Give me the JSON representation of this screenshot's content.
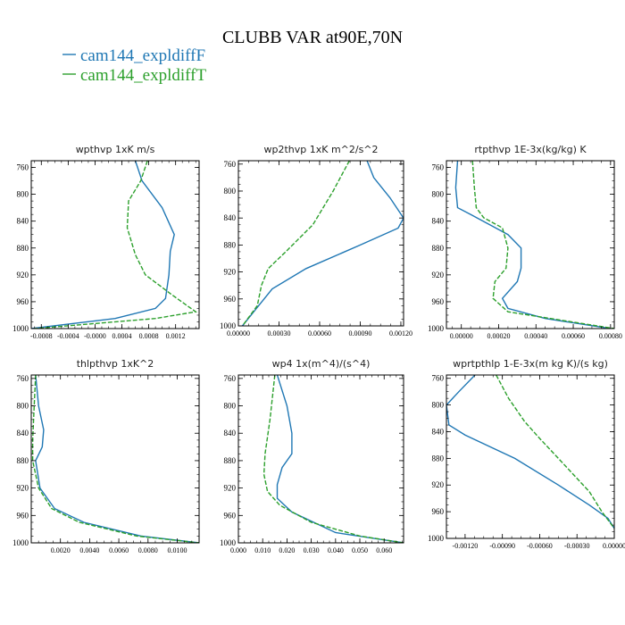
{
  "figure": {
    "title": "CLUBB VAR at90E,70N",
    "legend": [
      {
        "label": "cam144_expldiffF",
        "color": "#1f77b4"
      },
      {
        "label": "cam144_expldiffT",
        "color": "#2ca02c"
      }
    ]
  },
  "chart_data": [
    {
      "type": "line",
      "title": "wpthvp   1xK m/s",
      "xlim": [
        -0.00095,
        0.00155
      ],
      "ylim": [
        1000,
        750
      ],
      "xticks": [
        -0.0008,
        -0.0004,
        0.0,
        0.0004,
        0.0008,
        0.0012
      ],
      "xtick_labels": [
        "-0.0008",
        "-0.0004",
        "-0.0000",
        "0.0004",
        "0.0008",
        "0.0012"
      ],
      "yticks": [
        760,
        800,
        840,
        880,
        920,
        960,
        1000
      ],
      "ytick_labels": [
        "760",
        "800",
        "840",
        "880",
        "920",
        "960",
        "1000"
      ],
      "series": [
        {
          "name": "cam144_expldiffF",
          "color": "#1f77b4",
          "x": [
            0.0006,
            0.0007,
            0.001,
            0.00118,
            0.00112,
            0.0011,
            0.00105,
            0.0009,
            0.0003,
            -0.00095
          ],
          "y": [
            750,
            780,
            820,
            860,
            885,
            920,
            955,
            970,
            985,
            1000
          ]
        },
        {
          "name": "cam144_expldiffT",
          "color": "#2ca02c",
          "dash": true,
          "x": [
            0.00078,
            0.00068,
            0.0005,
            0.00048,
            0.0006,
            0.00075,
            0.00115,
            0.0015,
            0.0009,
            -0.0009
          ],
          "y": [
            750,
            780,
            810,
            850,
            890,
            920,
            950,
            975,
            985,
            1000
          ]
        }
      ]
    },
    {
      "type": "line",
      "title": "wp2thvp   1xK m^2/s^2",
      "xlim": [
        0,
        0.00122
      ],
      "ylim": [
        1000,
        755
      ],
      "xticks": [
        0,
        0.0003,
        0.0006,
        0.0009,
        0.0012
      ],
      "xtick_labels": [
        "0.00000",
        "0.00030",
        "0.00060",
        "0.00090",
        "0.00120"
      ],
      "yticks": [
        760,
        800,
        840,
        880,
        920,
        960,
        1000
      ],
      "ytick_labels": [
        "760",
        "800",
        "840",
        "880",
        "920",
        "960",
        "1000"
      ],
      "series": [
        {
          "name": "cam144_expldiffF",
          "color": "#1f77b4",
          "x": [
            0.00095,
            0.001,
            0.00112,
            0.00122,
            0.00118,
            0.0009,
            0.0005,
            0.00025,
            0.00013,
            3e-05
          ],
          "y": [
            755,
            780,
            810,
            840,
            855,
            880,
            915,
            945,
            975,
            1000
          ]
        },
        {
          "name": "cam144_expldiffT",
          "color": "#2ca02c",
          "dash": true,
          "x": [
            0.00082,
            0.0007,
            0.00055,
            0.00035,
            0.00022,
            0.00017,
            0.00014,
            3e-05
          ],
          "y": [
            755,
            800,
            850,
            890,
            915,
            940,
            970,
            1000
          ]
        }
      ]
    },
    {
      "type": "line",
      "title": "rtpthvp   1E-3x(kg/kg) K",
      "xlim": [
        -8e-05,
        0.00082
      ],
      "ylim": [
        1000,
        750
      ],
      "xticks": [
        0,
        0.0002,
        0.0004,
        0.0006,
        0.0008
      ],
      "xtick_labels": [
        "0.00000",
        "0.00020",
        "0.00040",
        "0.00060",
        "0.00080"
      ],
      "yticks": [
        760,
        800,
        840,
        880,
        920,
        960,
        1000
      ],
      "ytick_labels": [
        "760",
        "800",
        "840",
        "880",
        "920",
        "960",
        "1000"
      ],
      "series": [
        {
          "name": "cam144_expldiffF",
          "color": "#1f77b4",
          "x": [
            -2e-05,
            -3e-05,
            -2e-05,
            5e-05,
            0.00025,
            0.00032,
            0.00032,
            0.0003,
            0.00022,
            0.00025,
            0.00045,
            0.0008
          ],
          "y": [
            750,
            790,
            820,
            830,
            860,
            880,
            910,
            930,
            955,
            970,
            985,
            1000
          ]
        },
        {
          "name": "cam144_expldiffT",
          "color": "#2ca02c",
          "dash": true,
          "x": [
            6e-05,
            7e-05,
            8e-05,
            0.00012,
            0.00022,
            0.00025,
            0.00024,
            0.00018,
            0.00017,
            0.00025,
            0.00082
          ],
          "y": [
            750,
            790,
            820,
            835,
            850,
            880,
            910,
            930,
            955,
            975,
            1000
          ]
        }
      ]
    },
    {
      "type": "line",
      "title": "thlpthvp   1xK^2",
      "xlim": [
        0,
        0.0115
      ],
      "ylim": [
        1000,
        755
      ],
      "xticks": [
        0.002,
        0.004,
        0.006,
        0.008,
        0.01
      ],
      "xtick_labels": [
        "0.0020",
        "0.0040",
        "0.0060",
        "0.0080",
        "0.0100"
      ],
      "yticks": [
        760,
        800,
        840,
        880,
        920,
        960,
        1000
      ],
      "ytick_labels": [
        "760",
        "800",
        "840",
        "880",
        "920",
        "960",
        "1000"
      ],
      "series": [
        {
          "name": "cam144_expldiffF",
          "color": "#1f77b4",
          "x": [
            0.0003,
            0.0005,
            0.00085,
            0.00075,
            0.0003,
            0.0006,
            0.0016,
            0.0036,
            0.0075,
            0.0115
          ],
          "y": [
            755,
            800,
            835,
            860,
            880,
            920,
            950,
            970,
            990,
            1000
          ]
        },
        {
          "name": "cam144_expldiffT",
          "color": "#2ca02c",
          "dash": true,
          "x": [
            0.0003,
            0.0002,
            0.0001,
            0.0001,
            0.0005,
            0.0014,
            0.0033,
            0.0072,
            0.0115
          ],
          "y": [
            755,
            800,
            850,
            880,
            920,
            950,
            970,
            990,
            1000
          ]
        }
      ]
    },
    {
      "type": "line",
      "title": "wp4   1x(m^4)/(s^4)",
      "xlim": [
        0,
        0.068
      ],
      "ylim": [
        1000,
        755
      ],
      "xticks": [
        0,
        0.01,
        0.02,
        0.03,
        0.04,
        0.05,
        0.06
      ],
      "xtick_labels": [
        "0.000",
        "0.010",
        "0.020",
        "0.030",
        "0.040",
        "0.050",
        "0.060"
      ],
      "yticks": [
        760,
        800,
        840,
        880,
        920,
        960,
        1000
      ],
      "ytick_labels": [
        "760",
        "800",
        "840",
        "880",
        "920",
        "960",
        "1000"
      ],
      "series": [
        {
          "name": "cam144_expldiffF",
          "color": "#1f77b4",
          "x": [
            0.016,
            0.02,
            0.022,
            0.022,
            0.018,
            0.016,
            0.016,
            0.022,
            0.04,
            0.068
          ],
          "y": [
            755,
            800,
            840,
            870,
            890,
            915,
            935,
            955,
            985,
            1000
          ]
        },
        {
          "name": "cam144_expldiffT",
          "color": "#2ca02c",
          "dash": true,
          "x": [
            0.015,
            0.013,
            0.011,
            0.0105,
            0.012,
            0.017,
            0.03,
            0.05,
            0.068
          ],
          "y": [
            755,
            820,
            870,
            900,
            925,
            945,
            970,
            990,
            1000
          ]
        }
      ]
    },
    {
      "type": "line",
      "title": "wprtpthlp   1-E-3x(m kg K)/(s kg)",
      "xlim": [
        -0.00135,
        0.0
      ],
      "ylim": [
        1000,
        755
      ],
      "xticks": [
        -0.0012,
        -0.0009,
        -0.0006,
        -0.0003,
        0.0
      ],
      "xtick_labels": [
        "-0.00120",
        "-0.00090",
        "-0.00060",
        "-0.00030",
        "0.00000"
      ],
      "yticks": [
        760,
        800,
        840,
        880,
        920,
        960,
        1000
      ],
      "ytick_labels": [
        "760",
        "800",
        "840",
        "880",
        "920",
        "960",
        "1000"
      ],
      "series": [
        {
          "name": "cam144_expldiffF",
          "color": "#1f77b4",
          "x": [
            -0.00112,
            -0.00125,
            -0.00135,
            -0.00133,
            -0.0012,
            -0.0008,
            -0.00045,
            -0.0002,
            -5e-05,
            0.0
          ],
          "y": [
            755,
            780,
            800,
            830,
            845,
            880,
            920,
            950,
            970,
            985
          ]
        },
        {
          "name": "cam144_expldiffT",
          "color": "#2ca02c",
          "dash": true,
          "x": [
            -0.00095,
            -0.00085,
            -0.00072,
            -0.0006,
            -0.0004,
            -0.0002,
            -0.0001,
            0.0
          ],
          "y": [
            755,
            790,
            825,
            850,
            890,
            930,
            960,
            985
          ]
        }
      ]
    }
  ]
}
